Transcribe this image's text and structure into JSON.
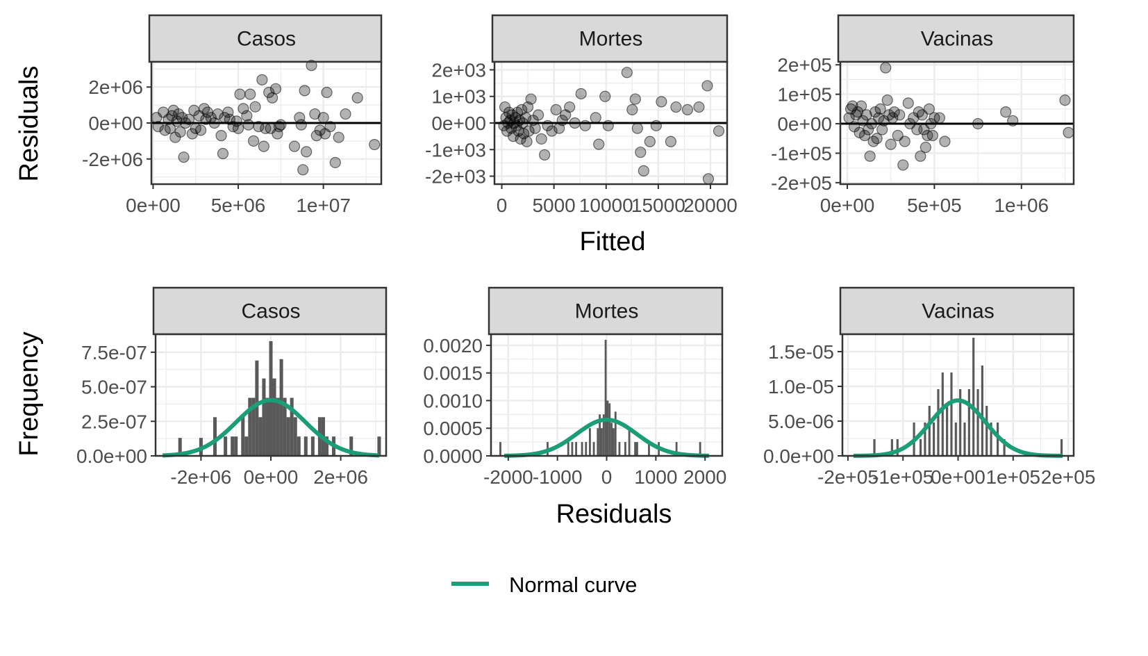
{
  "figure": {
    "row1_ylabel": "Residuals",
    "row1_xlabel": "Fitted",
    "row2_ylabel": "Frequency",
    "row2_xlabel": "Residuals",
    "legend_label": "Normal curve",
    "colors": {
      "points": "#000000",
      "bars": "#595959",
      "normal_curve": "#1b9e77",
      "strip_bg": "#d9d9d9",
      "grid": "#ebebeb",
      "panel_border": "#333333"
    }
  },
  "chart_data": [
    {
      "type": "scatter",
      "panel": "Casos",
      "xlabel": "Fitted",
      "ylabel": "Residuals",
      "xlim": [
        -100000,
        13400000
      ],
      "ylim": [
        -3400000,
        3400000
      ],
      "xticks": [
        0,
        5000000,
        10000000
      ],
      "xtick_labels": [
        "0e+00",
        "5e+06",
        "1e+07"
      ],
      "yticks": [
        -2000000,
        0,
        2000000
      ],
      "ytick_labels": [
        "-2e+06",
        "0e+00",
        "2e+06"
      ],
      "hline": 0,
      "grid": true,
      "points": [
        [
          200000,
          300000
        ],
        [
          300000,
          -200000
        ],
        [
          600000,
          600000
        ],
        [
          700000,
          -400000
        ],
        [
          900000,
          200000
        ],
        [
          1000000,
          -300000
        ],
        [
          1100000,
          400000
        ],
        [
          1200000,
          700000
        ],
        [
          1300000,
          -800000
        ],
        [
          1400000,
          100000
        ],
        [
          1500000,
          500000
        ],
        [
          1600000,
          -500000
        ],
        [
          1700000,
          300000
        ],
        [
          1800000,
          -1900000
        ],
        [
          1900000,
          0
        ],
        [
          2100000,
          200000
        ],
        [
          2300000,
          -600000
        ],
        [
          2400000,
          700000
        ],
        [
          2500000,
          -300000
        ],
        [
          2700000,
          400000
        ],
        [
          2800000,
          -400000
        ],
        [
          3000000,
          800000
        ],
        [
          3100000,
          200000
        ],
        [
          3200000,
          600000
        ],
        [
          3400000,
          300000
        ],
        [
          3600000,
          0
        ],
        [
          3800000,
          500000
        ],
        [
          4000000,
          -700000
        ],
        [
          4100000,
          -1700000
        ],
        [
          4200000,
          300000
        ],
        [
          4400000,
          600000
        ],
        [
          4500000,
          200000
        ],
        [
          4700000,
          -200000
        ],
        [
          4900000,
          100000
        ],
        [
          5000000,
          -300000
        ],
        [
          5100000,
          1600000
        ],
        [
          5300000,
          800000
        ],
        [
          5500000,
          400000
        ],
        [
          5600000,
          -100000
        ],
        [
          5700000,
          1600000
        ],
        [
          5900000,
          -1000000
        ],
        [
          6000000,
          900000
        ],
        [
          6200000,
          -200000
        ],
        [
          6400000,
          2400000
        ],
        [
          6500000,
          -1300000
        ],
        [
          6600000,
          -300000
        ],
        [
          6800000,
          1700000
        ],
        [
          6900000,
          -300000
        ],
        [
          7000000,
          1400000
        ],
        [
          7200000,
          1900000
        ],
        [
          7300000,
          -600000
        ],
        [
          7400000,
          -200000
        ],
        [
          7500000,
          -100000
        ],
        [
          8300000,
          -1300000
        ],
        [
          8600000,
          300000
        ],
        [
          8700000,
          -100000
        ],
        [
          8800000,
          -2600000
        ],
        [
          8900000,
          1800000
        ],
        [
          9000000,
          -1600000
        ],
        [
          9300000,
          3200000
        ],
        [
          9500000,
          500000
        ],
        [
          9600000,
          -700000
        ],
        [
          9800000,
          -400000
        ],
        [
          10000000,
          300000
        ],
        [
          10100000,
          -600000
        ],
        [
          10200000,
          1700000
        ],
        [
          10400000,
          -200000
        ],
        [
          10700000,
          -2200000
        ],
        [
          10900000,
          -800000
        ],
        [
          11300000,
          500000
        ],
        [
          12000000,
          1400000
        ],
        [
          13000000,
          -1200000
        ]
      ]
    },
    {
      "type": "scatter",
      "panel": "Mortes",
      "xlabel": "Fitted",
      "ylabel": "Residuals",
      "xlim": [
        -700,
        21600
      ],
      "ylim": [
        -2300,
        2300
      ],
      "xticks": [
        0,
        5000,
        10000,
        15000,
        20000
      ],
      "xtick_labels": [
        "0",
        "5000",
        "10000",
        "15000",
        "20000"
      ],
      "yticks": [
        -2000,
        -1000,
        0,
        1000,
        2000
      ],
      "ytick_labels": [
        "-2e+03",
        "-1e+03",
        "0e+00",
        "1e+03",
        "2e+03"
      ],
      "hline": 0,
      "grid": true,
      "points": [
        [
          200,
          -100
        ],
        [
          300,
          600
        ],
        [
          400,
          200
        ],
        [
          500,
          -300
        ],
        [
          600,
          0
        ],
        [
          700,
          400
        ],
        [
          800,
          100
        ],
        [
          900,
          -200
        ],
        [
          1000,
          300
        ],
        [
          1100,
          -500
        ],
        [
          1200,
          0
        ],
        [
          1300,
          200
        ],
        [
          1400,
          -100
        ],
        [
          1500,
          400
        ],
        [
          1600,
          -300
        ],
        [
          1700,
          100
        ],
        [
          1800,
          -600
        ],
        [
          1900,
          500
        ],
        [
          2000,
          0
        ],
        [
          2100,
          -400
        ],
        [
          2300,
          200
        ],
        [
          2400,
          -700
        ],
        [
          2500,
          600
        ],
        [
          2600,
          -300
        ],
        [
          2800,
          900
        ],
        [
          3000,
          100
        ],
        [
          3200,
          -200
        ],
        [
          3500,
          300
        ],
        [
          3800,
          -600
        ],
        [
          4100,
          -1200
        ],
        [
          4400,
          -100
        ],
        [
          4800,
          -300
        ],
        [
          5200,
          500
        ],
        [
          5500,
          -200
        ],
        [
          5800,
          100
        ],
        [
          6100,
          300
        ],
        [
          6500,
          600
        ],
        [
          7000,
          0
        ],
        [
          7600,
          1100
        ],
        [
          8000,
          -100
        ],
        [
          9000,
          200
        ],
        [
          9300,
          -800
        ],
        [
          9900,
          1000
        ],
        [
          10200,
          -100
        ],
        [
          12000,
          1900
        ],
        [
          12500,
          500
        ],
        [
          12800,
          900
        ],
        [
          13000,
          -200
        ],
        [
          13300,
          -1100
        ],
        [
          13600,
          -1800
        ],
        [
          14200,
          -700
        ],
        [
          14800,
          -100
        ],
        [
          15300,
          800
        ],
        [
          16200,
          -700
        ],
        [
          16700,
          600
        ],
        [
          17800,
          500
        ],
        [
          18900,
          600
        ],
        [
          19700,
          1400
        ],
        [
          19800,
          -2100
        ],
        [
          20800,
          -300
        ]
      ]
    },
    {
      "type": "scatter",
      "panel": "Vacinas",
      "xlabel": "Fitted",
      "ylabel": "Residuals",
      "xlim": [
        -40000,
        1300000
      ],
      "ylim": [
        -205000,
        210000
      ],
      "xticks": [
        0,
        500000,
        1000000
      ],
      "xtick_labels": [
        "0e+00",
        "5e+05",
        "1e+06"
      ],
      "yticks": [
        -200000,
        -100000,
        0,
        100000,
        200000
      ],
      "ytick_labels": [
        "-2e+05",
        "-1e+05",
        "0e+00",
        "1e+05",
        "2e+05"
      ],
      "hline": 0,
      "grid": true,
      "points": [
        [
          10000,
          20000
        ],
        [
          20000,
          50000
        ],
        [
          30000,
          60000
        ],
        [
          40000,
          -10000
        ],
        [
          50000,
          30000
        ],
        [
          60000,
          40000
        ],
        [
          70000,
          -30000
        ],
        [
          80000,
          60000
        ],
        [
          90000,
          10000
        ],
        [
          100000,
          -40000
        ],
        [
          110000,
          30000
        ],
        [
          120000,
          -20000
        ],
        [
          130000,
          -110000
        ],
        [
          140000,
          0
        ],
        [
          150000,
          -60000
        ],
        [
          160000,
          40000
        ],
        [
          170000,
          -50000
        ],
        [
          180000,
          20000
        ],
        [
          190000,
          50000
        ],
        [
          200000,
          -20000
        ],
        [
          210000,
          10000
        ],
        [
          220000,
          190000
        ],
        [
          230000,
          80000
        ],
        [
          240000,
          30000
        ],
        [
          250000,
          -70000
        ],
        [
          260000,
          20000
        ],
        [
          270000,
          40000
        ],
        [
          290000,
          -40000
        ],
        [
          300000,
          30000
        ],
        [
          320000,
          -140000
        ],
        [
          330000,
          -60000
        ],
        [
          350000,
          70000
        ],
        [
          360000,
          0
        ],
        [
          380000,
          20000
        ],
        [
          400000,
          -20000
        ],
        [
          410000,
          40000
        ],
        [
          420000,
          -110000
        ],
        [
          430000,
          30000
        ],
        [
          440000,
          -20000
        ],
        [
          450000,
          -80000
        ],
        [
          460000,
          -40000
        ],
        [
          470000,
          50000
        ],
        [
          480000,
          0
        ],
        [
          490000,
          -40000
        ],
        [
          500000,
          20000
        ],
        [
          530000,
          20000
        ],
        [
          560000,
          -60000
        ],
        [
          750000,
          0
        ],
        [
          910000,
          40000
        ],
        [
          950000,
          10000
        ],
        [
          1250000,
          80000
        ],
        [
          1270000,
          -30000
        ]
      ]
    },
    {
      "type": "bar",
      "subtype": "histogram",
      "panel": "Casos",
      "xlabel": "Residuals",
      "ylabel": "Frequency",
      "xlim": [
        -3300000,
        3300000
      ],
      "ylim": [
        0,
        8.8e-07
      ],
      "xticks": [
        -2000000,
        0,
        2000000
      ],
      "xtick_labels": [
        "-2e+06",
        "0e+00",
        "2e+06"
      ],
      "yticks": [
        0,
        2.5e-07,
        5e-07,
        7.5e-07
      ],
      "ytick_labels": [
        "0.0e+00",
        "2.5e-07",
        "5.0e-07",
        "7.5e-07"
      ],
      "grid": true,
      "bin_width": 100000,
      "bins": [
        [
          -2600000,
          1.3e-07
        ],
        [
          -2000000,
          1.3e-07
        ],
        [
          -1600000,
          2.8e-07
        ],
        [
          -1300000,
          1.4e-07
        ],
        [
          -1100000,
          1.4e-07
        ],
        [
          -1000000,
          1.4e-07
        ],
        [
          -800000,
          2.8e-07
        ],
        [
          -700000,
          1.4e-07
        ],
        [
          -600000,
          4.2e-07
        ],
        [
          -500000,
          4.2e-07
        ],
        [
          -400000,
          6.9e-07
        ],
        [
          -300000,
          2.8e-07
        ],
        [
          -200000,
          5.6e-07
        ],
        [
          -100000,
          4.2e-07
        ],
        [
          0,
          8.3e-07
        ],
        [
          100000,
          5.6e-07
        ],
        [
          200000,
          4.2e-07
        ],
        [
          300000,
          7e-07
        ],
        [
          400000,
          4.2e-07
        ],
        [
          500000,
          2.8e-07
        ],
        [
          600000,
          4.2e-07
        ],
        [
          700000,
          2.8e-07
        ],
        [
          800000,
          1.4e-07
        ],
        [
          1000000,
          1.4e-07
        ],
        [
          1200000,
          1.4e-07
        ],
        [
          1400000,
          2.8e-07
        ],
        [
          1500000,
          2.8e-07
        ],
        [
          1600000,
          1.4e-07
        ],
        [
          1800000,
          1.4e-07
        ],
        [
          2300000,
          1.4e-07
        ],
        [
          3100000,
          1.4e-07
        ]
      ],
      "normal_curve": {
        "mean": 0,
        "sd": 990000,
        "x_range": [
          -3100000,
          3100000
        ]
      }
    },
    {
      "type": "bar",
      "subtype": "histogram",
      "panel": "Mortes",
      "xlabel": "Residuals",
      "ylabel": "Frequency",
      "xlim": [
        -2350,
        2350
      ],
      "ylim": [
        0,
        0.0022
      ],
      "xticks": [
        -2000,
        -1000,
        0,
        1000,
        2000
      ],
      "xtick_labels": [
        "-2000",
        "-1000",
        "0",
        "1000",
        "2000"
      ],
      "yticks": [
        0,
        0.0005,
        0.001,
        0.0015,
        0.002
      ],
      "ytick_labels": [
        "0.0000",
        "0.0005",
        "0.0010",
        "0.0015",
        "0.0020"
      ],
      "grid": true,
      "bin_width": 40,
      "bins": [
        [
          -2160,
          0.00025
        ],
        [
          -1200,
          0.00025
        ],
        [
          -780,
          0.00025
        ],
        [
          -700,
          0.00025
        ],
        [
          -620,
          0.00025
        ],
        [
          -500,
          0.00025
        ],
        [
          -420,
          0.00025
        ],
        [
          -340,
          0.0005
        ],
        [
          -260,
          0.00025
        ],
        [
          -180,
          0.0005
        ],
        [
          -140,
          0.00075
        ],
        [
          -100,
          0.0005
        ],
        [
          -60,
          0.00075
        ],
        [
          -20,
          0.0021
        ],
        [
          20,
          0.001
        ],
        [
          60,
          0.00095
        ],
        [
          100,
          0.0006
        ],
        [
          140,
          0.0005
        ],
        [
          180,
          0.0008
        ],
        [
          260,
          0.00025
        ],
        [
          380,
          0.00025
        ],
        [
          460,
          0.0005
        ],
        [
          580,
          0.00025
        ],
        [
          620,
          0.00025
        ],
        [
          860,
          0.00025
        ],
        [
          1060,
          0.00025
        ],
        [
          1420,
          0.00025
        ],
        [
          1900,
          0.00025
        ]
      ],
      "normal_curve": {
        "mean": 0,
        "sd": 610,
        "x_range": [
          -2080,
          2080
        ]
      }
    },
    {
      "type": "bar",
      "subtype": "histogram",
      "panel": "Vacinas",
      "xlabel": "Residuals",
      "ylabel": "Frequency",
      "xlim": [
        -210000,
        210000
      ],
      "ylim": [
        0,
        1.75e-05
      ],
      "xticks": [
        -200000,
        -100000,
        0,
        100000,
        200000
      ],
      "xtick_labels": [
        "-2e+05",
        "-1e+05",
        "0e+00",
        "1e+05",
        "2e+05"
      ],
      "grid": true,
      "yticks": [
        0,
        5e-06,
        1e-05,
        1.5e-05
      ],
      "ytick_labels": [
        "0.0e+00",
        "5.0e-06",
        "1.0e-05",
        "1.5e-05"
      ],
      "bin_width": 4000,
      "bins": [
        [
          -152000,
          2.4e-06
        ],
        [
          -120000,
          2.4e-06
        ],
        [
          -110000,
          2.4e-06
        ],
        [
          -80000,
          4.8e-06
        ],
        [
          -68000,
          2.4e-06
        ],
        [
          -60000,
          4.8e-06
        ],
        [
          -52000,
          7.2e-06
        ],
        [
          -44000,
          4.8e-06
        ],
        [
          -36000,
          9.6e-06
        ],
        [
          -28000,
          1.2e-05
        ],
        [
          -20000,
          7.2e-06
        ],
        [
          -12000,
          1.2e-05
        ],
        [
          -4000,
          4.8e-06
        ],
        [
          4000,
          9.6e-06
        ],
        [
          12000,
          4.8e-06
        ],
        [
          20000,
          9.6e-06
        ],
        [
          28000,
          1.7e-05
        ],
        [
          36000,
          9.6e-06
        ],
        [
          44000,
          1.3e-05
        ],
        [
          52000,
          7.2e-06
        ],
        [
          60000,
          4.8e-06
        ],
        [
          72000,
          4.8e-06
        ],
        [
          84000,
          2.4e-06
        ],
        [
          188000,
          2.4e-06
        ]
      ],
      "normal_curve": {
        "mean": 0,
        "sd": 50000,
        "x_range": [
          -190000,
          190000
        ]
      }
    }
  ]
}
